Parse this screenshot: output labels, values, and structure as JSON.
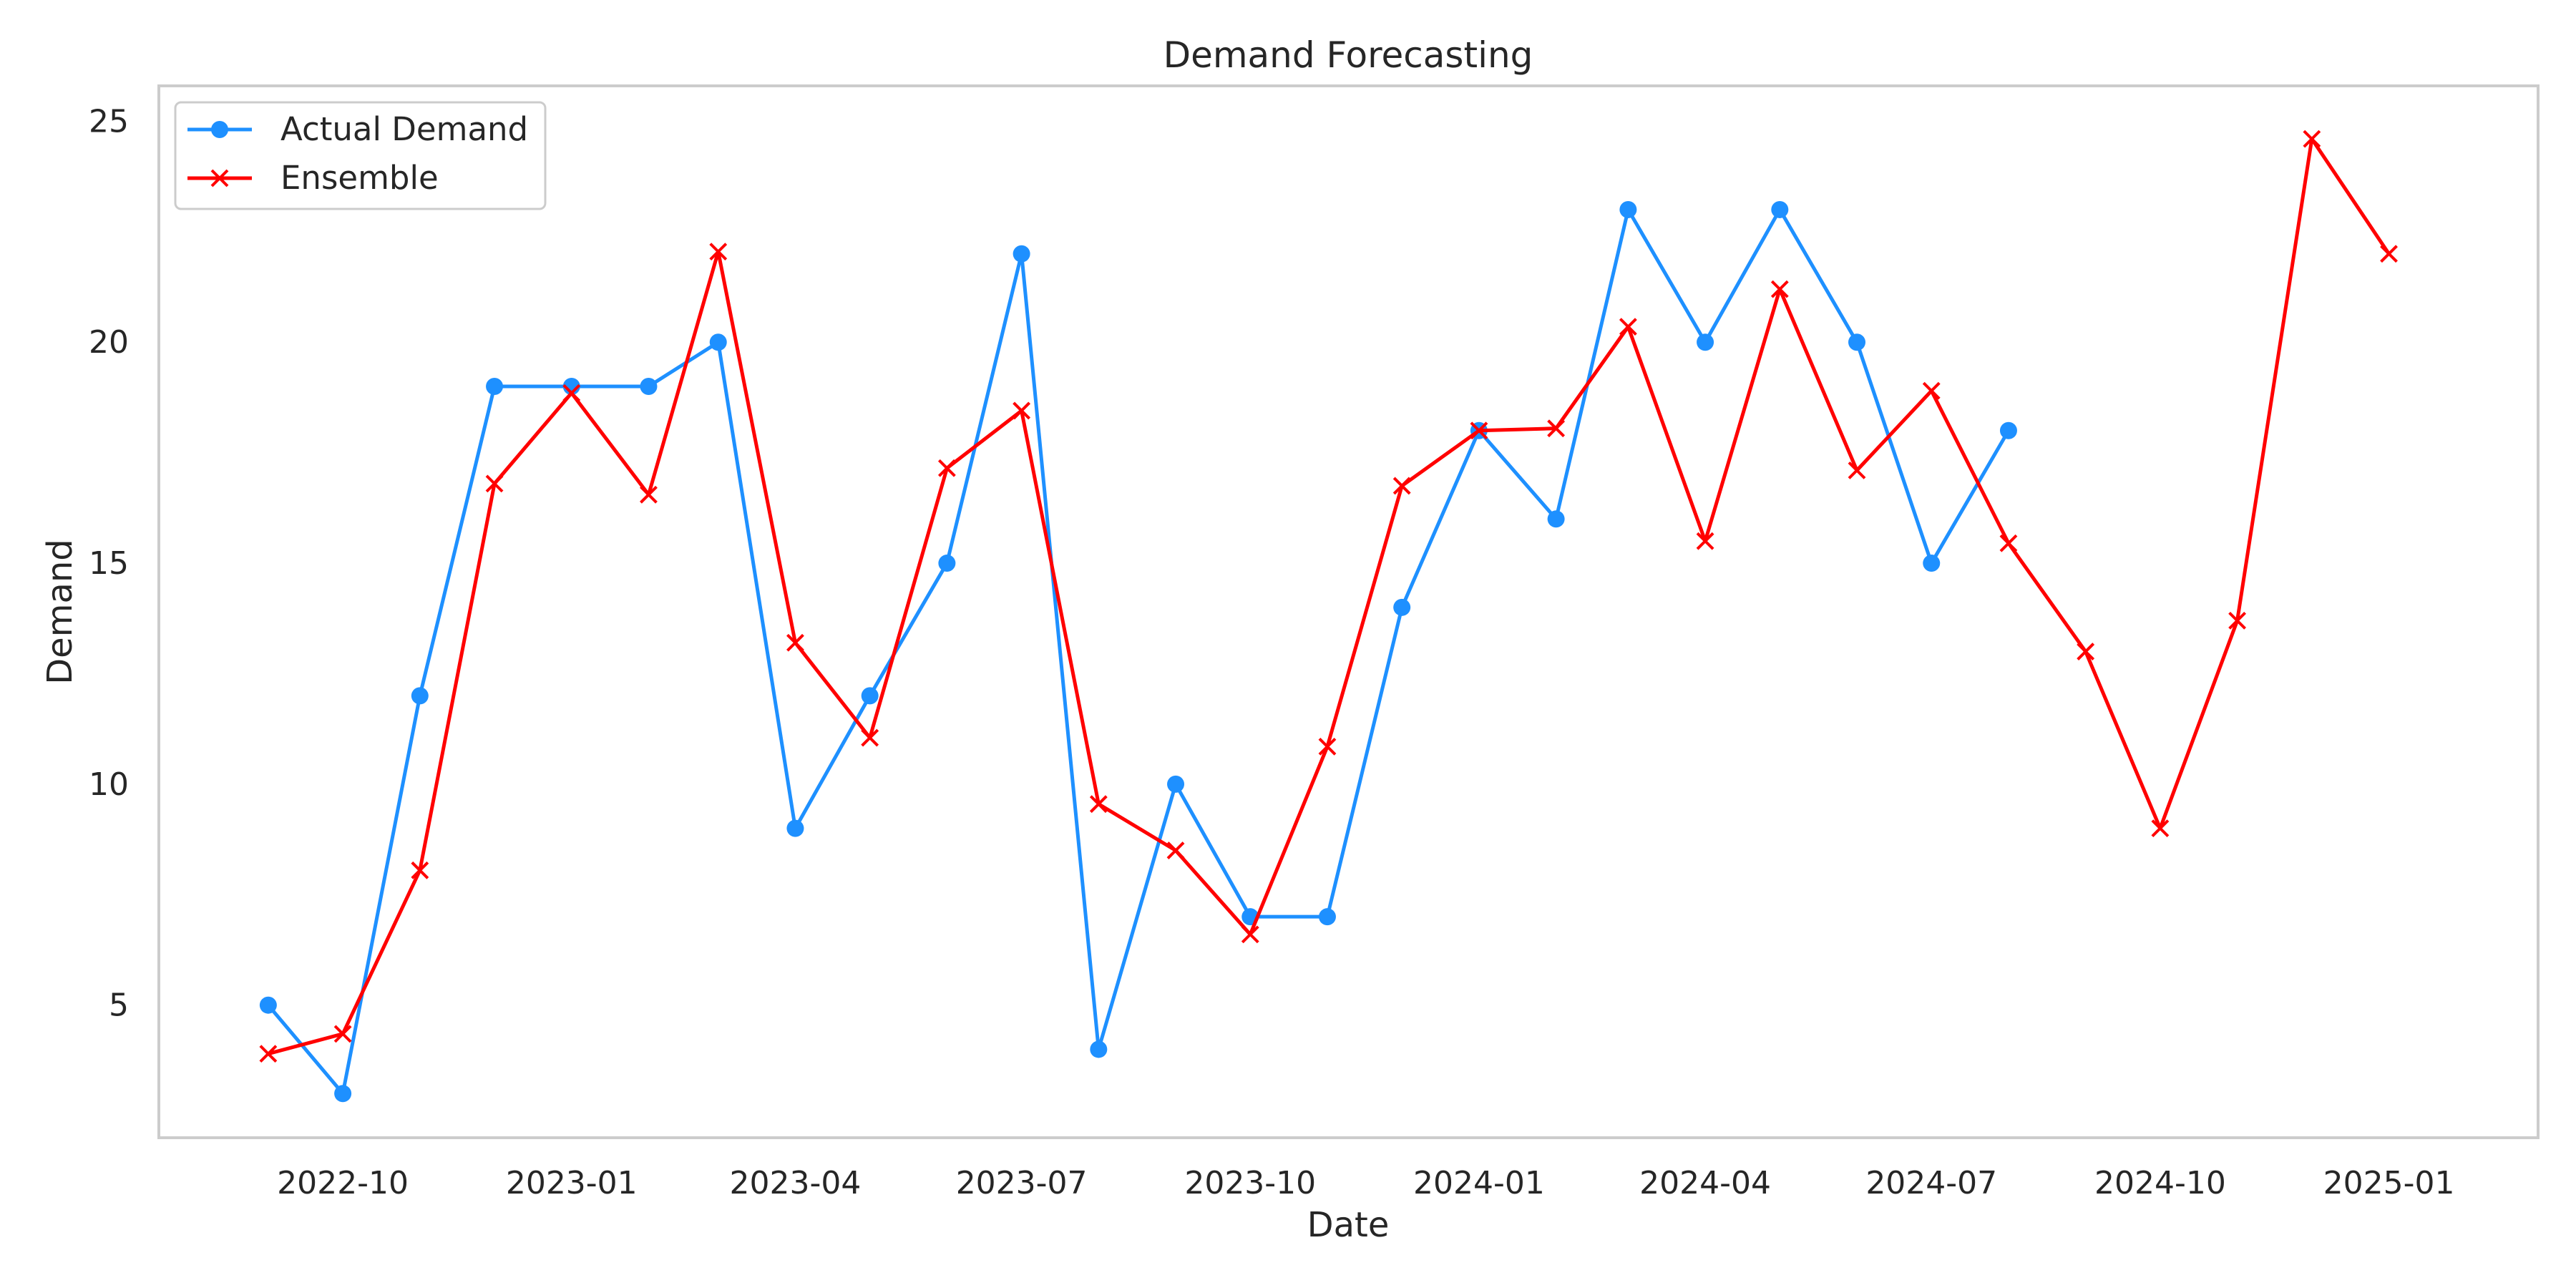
{
  "chart_data": {
    "type": "line",
    "title": "Demand Forecasting",
    "xlabel": "Date",
    "ylabel": "Demand",
    "x_ticks": [
      "2022-10",
      "2023-01",
      "2023-04",
      "2023-07",
      "2023-10",
      "2024-01",
      "2024-04",
      "2024-07",
      "2024-10",
      "2025-01"
    ],
    "y_ticks": [
      5,
      10,
      15,
      20,
      25
    ],
    "xlim": [
      "2022-07-19",
      "2025-03-02"
    ],
    "ylim": [
      2.0,
      25.8
    ],
    "grid": false,
    "legend_position": "upper-left",
    "series": [
      {
        "name": "Actual Demand",
        "color": "#1e90ff",
        "marker": "circle",
        "x": [
          "2022-09-01",
          "2022-10-01",
          "2022-11-01",
          "2022-12-01",
          "2023-01-01",
          "2023-02-01",
          "2023-03-01",
          "2023-04-01",
          "2023-05-01",
          "2023-06-01",
          "2023-07-01",
          "2023-08-01",
          "2023-09-01",
          "2023-10-01",
          "2023-11-01",
          "2023-12-01",
          "2024-01-01",
          "2024-02-01",
          "2024-03-01",
          "2024-04-01",
          "2024-05-01",
          "2024-06-01",
          "2024-07-01",
          "2024-08-01"
        ],
        "y": [
          5,
          3,
          12,
          19,
          19,
          19,
          20,
          9,
          12,
          15,
          22,
          4,
          10,
          7,
          7,
          14,
          18,
          16,
          23,
          20,
          23,
          20,
          15,
          18
        ]
      },
      {
        "name": "Ensemble",
        "color": "#ff0000",
        "marker": "x",
        "x": [
          "2022-09-01",
          "2022-10-01",
          "2022-11-01",
          "2022-12-01",
          "2023-01-01",
          "2023-02-01",
          "2023-03-01",
          "2023-04-01",
          "2023-05-01",
          "2023-06-01",
          "2023-07-01",
          "2023-08-01",
          "2023-09-01",
          "2023-10-01",
          "2023-11-01",
          "2023-12-01",
          "2024-01-01",
          "2024-02-01",
          "2024-03-01",
          "2024-04-01",
          "2024-05-01",
          "2024-06-01",
          "2024-07-01",
          "2024-08-01",
          "2024-09-01",
          "2024-10-01",
          "2024-11-01",
          "2024-12-01",
          "2025-01-01"
        ],
        "y": [
          3.9,
          4.35,
          8.05,
          16.8,
          18.85,
          16.55,
          22.05,
          13.2,
          11.05,
          17.15,
          18.45,
          9.55,
          8.5,
          6.6,
          10.85,
          16.75,
          18.0,
          18.05,
          20.35,
          15.5,
          21.2,
          17.1,
          18.9,
          15.45,
          13.0,
          9.0,
          13.7,
          24.6,
          22.0
        ]
      }
    ]
  }
}
